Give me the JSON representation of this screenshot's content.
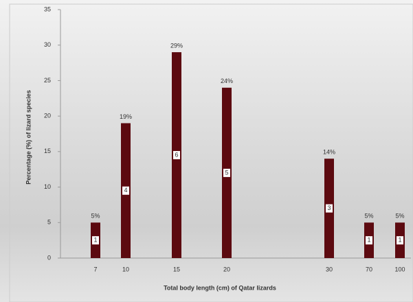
{
  "chart_data": {
    "type": "bar",
    "x_label": "Total body length (cm) of Qatar lizards",
    "y_label": "Percentage (%) of lizard species",
    "categories": [
      "7",
      "10",
      "15",
      "20",
      "30",
      "70",
      "100"
    ],
    "values": [
      5,
      19,
      29,
      24,
      14,
      5,
      5
    ],
    "value_labels": [
      "5%",
      "19%",
      "29%",
      "24%",
      "14%",
      "5%",
      "5%"
    ],
    "counts": [
      1,
      4,
      6,
      5,
      3,
      1,
      1
    ],
    "color": "#5c0a10",
    "ylim": [
      0,
      35
    ],
    "yticks": [
      0,
      5,
      10,
      15,
      20,
      25,
      30,
      35
    ]
  }
}
